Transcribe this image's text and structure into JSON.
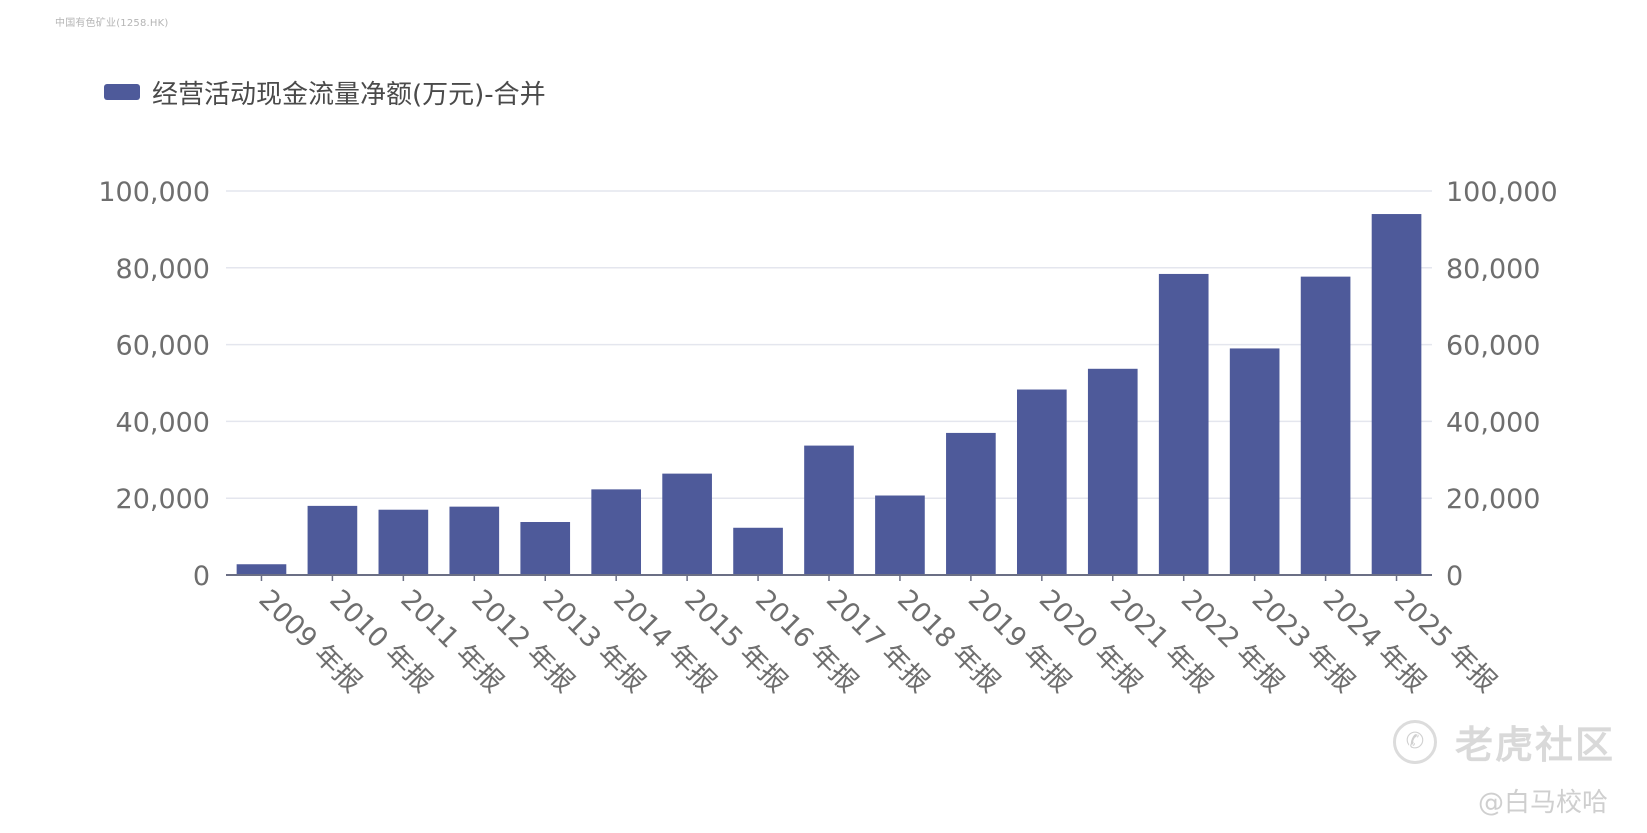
{
  "source_label": "中国有色矿业(1258.HK)",
  "watermark": {
    "logo_glyph": "✆",
    "logo_icon": "tiger-community-logo-icon",
    "text": "老虎社区"
  },
  "author_tag": "@白马校哈",
  "chart_data": {
    "type": "bar",
    "title": "",
    "xlabel": "",
    "ylabel": "",
    "legend": {
      "position": "top-left",
      "entries": [
        "经营活动现金流量净额(万元)-合并"
      ]
    },
    "series": [
      {
        "name": "经营活动现金流量净额(万元)-合并",
        "color": "#4e5a9a",
        "values": [
          2800,
          18000,
          17000,
          17800,
          13800,
          22300,
          26400,
          12300,
          33700,
          20700,
          37000,
          48300,
          53700,
          78400,
          59000,
          77700,
          94000
        ]
      }
    ],
    "categories": [
      "2009 年报",
      "2010 年报",
      "2011 年报",
      "2012 年报",
      "2013 年报",
      "2014 年报",
      "2015 年报",
      "2016 年报",
      "2017 年报",
      "2018 年报",
      "2019 年报",
      "2020 年报",
      "2021 年报",
      "2022 年报",
      "2023 年报",
      "2024 年报",
      "2025 年报"
    ],
    "ylim": [
      0,
      100000
    ],
    "yticks": [
      "0",
      "20,000",
      "40,000",
      "60,000",
      "80,000",
      "100,000"
    ],
    "y_tick_values": [
      0,
      20000,
      40000,
      60000,
      80000,
      100000
    ],
    "dual_y_axis": true,
    "grid": true,
    "colors": {
      "bar": "#4e5a9a",
      "grid": "#e4e6ee",
      "axis": "#6b6f85",
      "tick_text": "#6e6e6e"
    }
  }
}
